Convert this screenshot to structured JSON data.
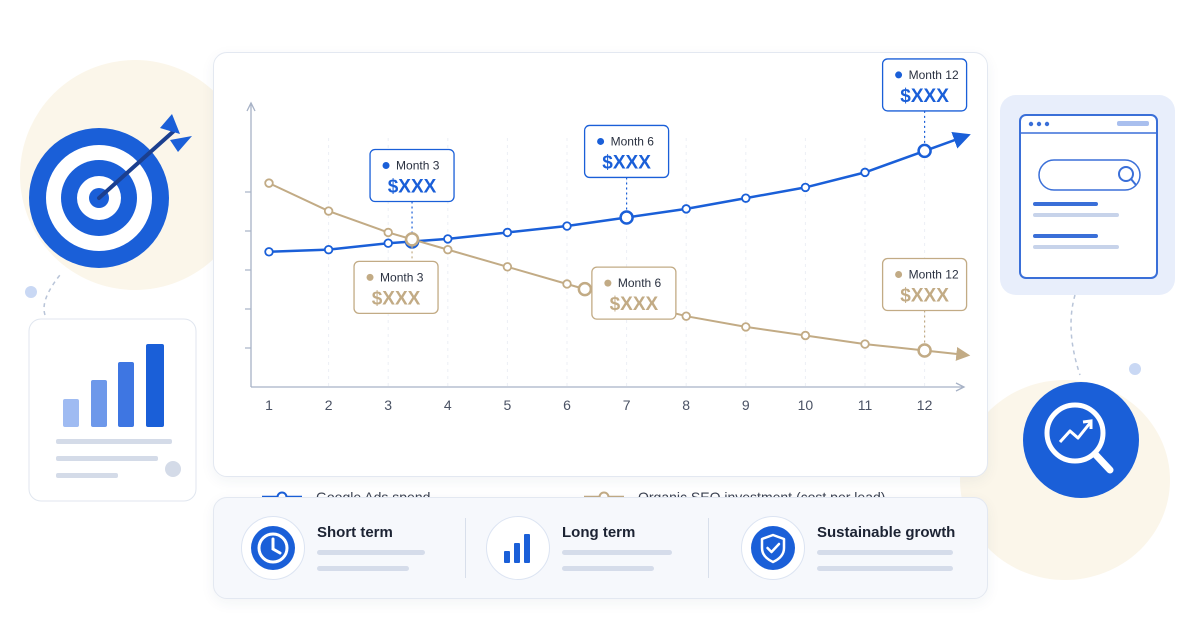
{
  "colors": {
    "ads": "#1a5fd8",
    "seo": "#c2ab85",
    "accent_light": "#9bb8f0"
  },
  "chart_data": {
    "type": "line",
    "x": [
      1,
      2,
      3,
      4,
      5,
      6,
      7,
      8,
      9,
      10,
      11,
      12
    ],
    "series": [
      {
        "name": "Google Ads spend",
        "key": "ads",
        "values": [
          0.63,
          0.64,
          0.67,
          0.69,
          0.72,
          0.75,
          0.79,
          0.83,
          0.88,
          0.93,
          1.0,
          1.1
        ]
      },
      {
        "name": "Organic SEO investment (cost per lead)",
        "key": "seo",
        "values": [
          0.95,
          0.82,
          0.72,
          0.64,
          0.56,
          0.48,
          0.4,
          0.33,
          0.28,
          0.24,
          0.2,
          0.17
        ]
      }
    ],
    "callouts": [
      {
        "series": "ads",
        "x": 3.4,
        "label": "Month 3",
        "value": "$XXX",
        "box": "above"
      },
      {
        "series": "ads",
        "x": 7.0,
        "label": "Month 6",
        "value": "$XXX",
        "box": "above"
      },
      {
        "series": "ads",
        "x": 12.0,
        "label": "Month 12",
        "value": "$XXX",
        "box": "above"
      },
      {
        "series": "seo",
        "x": 3.4,
        "label": "Month 3",
        "value": "$XXX",
        "box": "below"
      },
      {
        "series": "seo",
        "x": 6.3,
        "label": "Month 6",
        "value": "$XXX",
        "box": "right"
      },
      {
        "series": "seo",
        "x": 12.0,
        "label": "Month 12",
        "value": "$XXX",
        "box": "above"
      }
    ],
    "xlabel": "",
    "ylabel": "",
    "ylim": [
      0,
      1.3
    ],
    "y_ticks_labeled": false,
    "legend_position": "bottom",
    "grid": "dashed vertical"
  },
  "legend": {
    "ads_label": "Google Ads spend",
    "seo_label": "Organic SEO investment (cost per lead)"
  },
  "benefits": [
    {
      "title": "Short term",
      "icon": "clock-icon"
    },
    {
      "title": "Long term",
      "icon": "bar-chart-icon"
    },
    {
      "title": "Sustainable growth",
      "icon": "shield-check-icon"
    }
  ],
  "decorations": {
    "left_top": "target-arrow-icon",
    "left_bottom": "growth-bar-chart-icon",
    "right_top": "browser-search-icon",
    "right_bottom": "analytics-magnifier-icon"
  }
}
